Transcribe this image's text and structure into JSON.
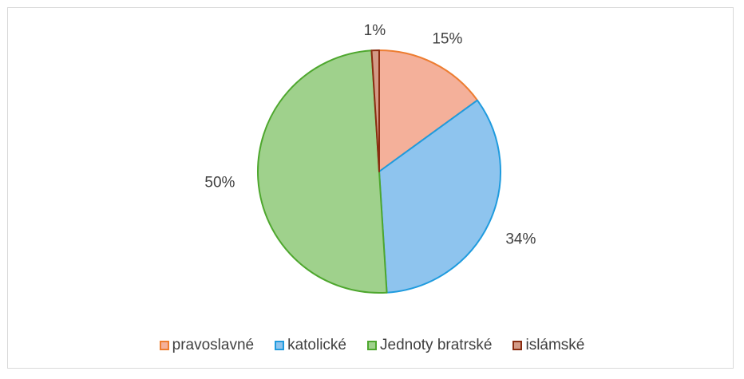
{
  "chart_data": {
    "type": "pie",
    "title": "",
    "legend_position": "bottom",
    "labels": [
      {
        "name": "pravoslavné",
        "value": 15,
        "label": "15%",
        "fill": "#f4b09a",
        "stroke": "#ed7d31"
      },
      {
        "name": "katolické",
        "value": 34,
        "label": "34%",
        "fill": "#8ec4ee",
        "stroke": "#1f9bde"
      },
      {
        "name": "Jednoty bratrské",
        "value": 50,
        "label": "50%",
        "fill": "#9fd18c",
        "stroke": "#4ea72e"
      },
      {
        "name": "islámské",
        "value": 1,
        "label": "1%",
        "fill": "#d39a86",
        "stroke": "#8a2c10"
      }
    ]
  }
}
